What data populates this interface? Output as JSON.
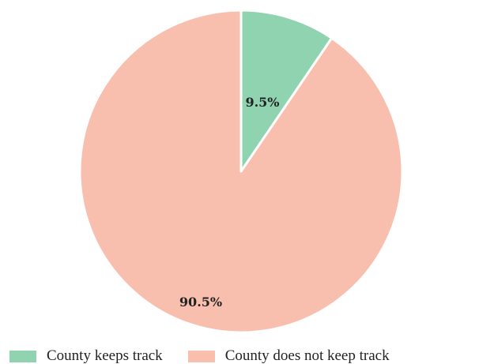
{
  "chart_data": {
    "type": "pie",
    "title": "",
    "slices": [
      {
        "label": "County keeps track",
        "value": 9.5,
        "display": "9.5%",
        "color": "#8fd3b0"
      },
      {
        "label": "County does not keep track",
        "value": 90.5,
        "display": "90.5%",
        "color": "#f9bfae"
      }
    ],
    "start_angle": "12 o'clock",
    "direction": "clockwise",
    "legend_position": "bottom-left"
  }
}
